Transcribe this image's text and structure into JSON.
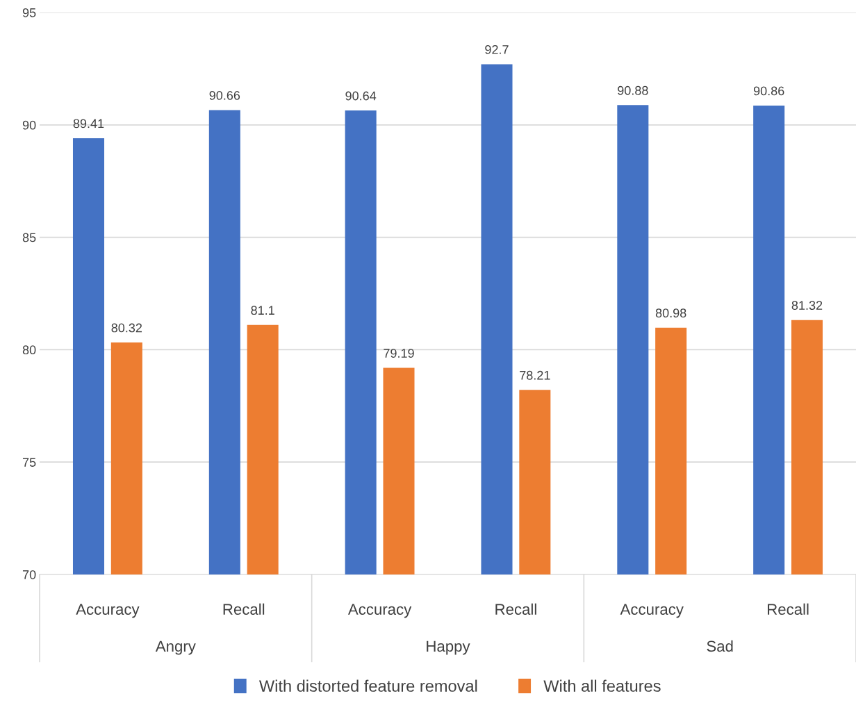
{
  "chart_data": {
    "type": "bar",
    "categories": [
      "Accuracy",
      "Recall",
      "Accuracy",
      "Recall",
      "Accuracy",
      "Recall"
    ],
    "series": [
      {
        "name": "With distorted feature removal",
        "color": "#4472c4",
        "values": [
          89.41,
          90.66,
          90.64,
          92.7,
          90.88,
          90.86
        ]
      },
      {
        "name": "With all features",
        "color": "#ed7d31",
        "values": [
          80.32,
          81.1,
          79.19,
          78.21,
          80.98,
          81.32
        ]
      }
    ],
    "annotations": [
      "Angry",
      "Happy",
      "Sad"
    ],
    "ylim": [
      70,
      95
    ],
    "yticks": [
      70,
      75,
      80,
      85,
      90,
      95
    ],
    "grid": "y",
    "legend": "bottom",
    "data_labels": true
  }
}
